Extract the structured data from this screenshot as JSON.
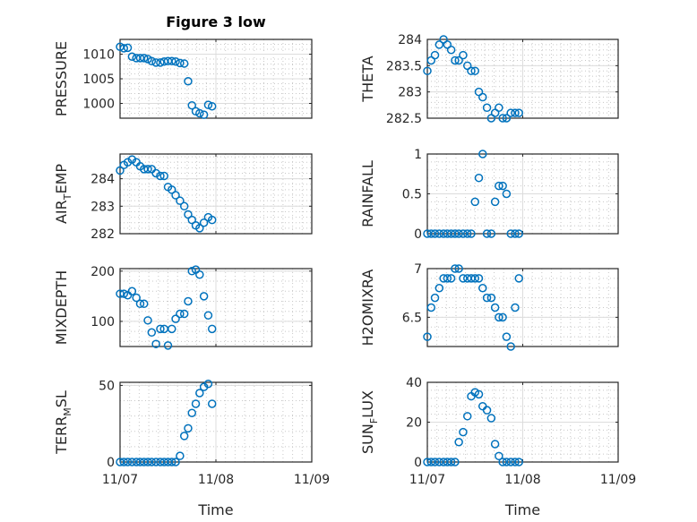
{
  "figure_title": "Figure 3 low",
  "chart_data": [
    {
      "type": "scatter",
      "ylabel": "PRESSURE",
      "ylim": [
        997,
        1013
      ],
      "yticks": [
        1000,
        1005,
        1010
      ],
      "xlim": [
        0,
        2
      ],
      "xticks": [
        0,
        1,
        2
      ],
      "xticklabels": [],
      "xlabel": "",
      "grid": true,
      "minor_grid": true,
      "marker_color": "#0072BD",
      "x": [
        0.0,
        0.04,
        0.08,
        0.125,
        0.17,
        0.21,
        0.25,
        0.29,
        0.33,
        0.375,
        0.42,
        0.46,
        0.5,
        0.54,
        0.58,
        0.625,
        0.67,
        0.71,
        0.75,
        0.79,
        0.83,
        0.875,
        0.92,
        0.96
      ],
      "y": [
        1011.5,
        1011.2,
        1011.3,
        1009.5,
        1009.2,
        1009.2,
        1009.2,
        1009.0,
        1008.6,
        1008.3,
        1008.3,
        1008.5,
        1008.6,
        1008.6,
        1008.5,
        1008.2,
        1008.1,
        1004.5,
        999.6,
        998.4,
        998.0,
        997.7,
        999.7,
        999.4
      ]
    },
    {
      "type": "scatter",
      "ylabel": "THETA",
      "ylim": [
        282.5,
        284
      ],
      "yticks": [
        282.5,
        283,
        283.5,
        284
      ],
      "xlim": [
        0,
        2
      ],
      "xticks": [
        0,
        1,
        2
      ],
      "xticklabels": [],
      "xlabel": "",
      "grid": true,
      "minor_grid": true,
      "marker_color": "#0072BD",
      "x": [
        0.0,
        0.04,
        0.08,
        0.125,
        0.17,
        0.21,
        0.25,
        0.29,
        0.33,
        0.375,
        0.42,
        0.46,
        0.5,
        0.54,
        0.58,
        0.625,
        0.67,
        0.71,
        0.75,
        0.79,
        0.83,
        0.875,
        0.92,
        0.96
      ],
      "y": [
        283.4,
        283.6,
        283.7,
        283.9,
        284.0,
        283.9,
        283.8,
        283.6,
        283.6,
        283.7,
        283.5,
        283.4,
        283.4,
        283.0,
        282.9,
        282.7,
        282.5,
        282.6,
        282.7,
        282.5,
        282.5,
        282.6,
        282.6,
        282.6
      ]
    },
    {
      "type": "scatter",
      "ylabel": "AIR_TEMP",
      "ylabel_main": "AIR",
      "ylabel_sub": "T",
      "ylabel_rest": "EMP",
      "ylim": [
        282,
        284.9
      ],
      "yticks": [
        282,
        283,
        284
      ],
      "xlim": [
        0,
        2
      ],
      "xticks": [
        0,
        1,
        2
      ],
      "xticklabels": [],
      "xlabel": "",
      "grid": true,
      "minor_grid": true,
      "marker_color": "#0072BD",
      "x": [
        0.0,
        0.04,
        0.08,
        0.125,
        0.17,
        0.21,
        0.25,
        0.29,
        0.33,
        0.375,
        0.42,
        0.46,
        0.5,
        0.54,
        0.58,
        0.625,
        0.67,
        0.71,
        0.75,
        0.79,
        0.83,
        0.875,
        0.92,
        0.96
      ],
      "y": [
        284.3,
        284.5,
        284.6,
        284.7,
        284.6,
        284.45,
        284.35,
        284.35,
        284.35,
        284.2,
        284.1,
        284.1,
        283.7,
        283.6,
        283.4,
        283.2,
        283.0,
        282.7,
        282.5,
        282.3,
        282.2,
        282.4,
        282.6,
        282.5
      ]
    },
    {
      "type": "scatter",
      "ylabel": "RAINFALL",
      "ylim": [
        0,
        1
      ],
      "yticks": [
        0,
        0.5,
        1
      ],
      "xlim": [
        0,
        2
      ],
      "xticks": [
        0,
        1,
        2
      ],
      "xticklabels": [],
      "xlabel": "",
      "grid": true,
      "minor_grid": true,
      "marker_color": "#0072BD",
      "x": [
        0.0,
        0.04,
        0.08,
        0.125,
        0.17,
        0.21,
        0.25,
        0.29,
        0.33,
        0.375,
        0.42,
        0.46,
        0.5,
        0.54,
        0.58,
        0.625,
        0.67,
        0.71,
        0.75,
        0.79,
        0.83,
        0.875,
        0.92,
        0.96
      ],
      "y": [
        0,
        0,
        0,
        0,
        0,
        0,
        0,
        0,
        0,
        0,
        0,
        0,
        0.4,
        0.7,
        1.0,
        0,
        0,
        0.4,
        0.6,
        0.6,
        0.5,
        0,
        0,
        0
      ]
    },
    {
      "type": "scatter",
      "ylabel": "MIXDEPTH",
      "ylim": [
        50,
        205
      ],
      "yticks": [
        100,
        200
      ],
      "xlim": [
        0,
        2
      ],
      "xticks": [
        0,
        1,
        2
      ],
      "xticklabels": [],
      "xlabel": "",
      "grid": true,
      "minor_grid": true,
      "marker_color": "#0072BD",
      "x": [
        0.0,
        0.04,
        0.08,
        0.125,
        0.17,
        0.21,
        0.25,
        0.29,
        0.33,
        0.375,
        0.42,
        0.46,
        0.5,
        0.54,
        0.58,
        0.625,
        0.67,
        0.71,
        0.75,
        0.79,
        0.83,
        0.875,
        0.92,
        0.96
      ],
      "y": [
        155,
        155,
        152,
        160,
        147,
        135,
        135,
        102,
        78,
        55,
        85,
        85,
        52,
        85,
        105,
        115,
        115,
        140,
        200,
        203,
        193,
        150,
        112,
        85
      ]
    },
    {
      "type": "scatter",
      "ylabel": "H2OMIXRA",
      "ylim": [
        6.2,
        7
      ],
      "yticks": [
        6.5,
        7
      ],
      "xlim": [
        0,
        2
      ],
      "xticks": [
        0,
        1,
        2
      ],
      "xticklabels": [],
      "xlabel": "",
      "grid": true,
      "minor_grid": true,
      "marker_color": "#0072BD",
      "x": [
        0.0,
        0.04,
        0.08,
        0.125,
        0.17,
        0.21,
        0.25,
        0.29,
        0.33,
        0.375,
        0.42,
        0.46,
        0.5,
        0.54,
        0.58,
        0.625,
        0.67,
        0.71,
        0.75,
        0.79,
        0.83,
        0.875,
        0.92,
        0.96
      ],
      "y": [
        6.3,
        6.6,
        6.7,
        6.8,
        6.9,
        6.9,
        6.9,
        7.0,
        7.0,
        6.9,
        6.9,
        6.9,
        6.9,
        6.9,
        6.8,
        6.7,
        6.7,
        6.6,
        6.5,
        6.5,
        6.3,
        6.2,
        6.6,
        6.9
      ]
    },
    {
      "type": "scatter",
      "ylabel": "TERR_MSL",
      "ylabel_main": "TERR",
      "ylabel_sub": "M",
      "ylabel_rest": "SL",
      "ylim": [
        0,
        52
      ],
      "yticks": [
        0,
        50
      ],
      "xlim": [
        0,
        2
      ],
      "xticks": [
        0,
        1,
        2
      ],
      "xticklabels": [
        "11/07",
        "11/08",
        "11/09"
      ],
      "xlabel": "Time",
      "grid": true,
      "minor_grid": true,
      "marker_color": "#0072BD",
      "x": [
        0.0,
        0.04,
        0.08,
        0.125,
        0.17,
        0.21,
        0.25,
        0.29,
        0.33,
        0.375,
        0.42,
        0.46,
        0.5,
        0.54,
        0.58,
        0.625,
        0.67,
        0.71,
        0.75,
        0.79,
        0.83,
        0.875,
        0.92,
        0.96
      ],
      "y": [
        0,
        0,
        0,
        0,
        0,
        0,
        0,
        0,
        0,
        0,
        0,
        0,
        0,
        0,
        0,
        4,
        17,
        22,
        32,
        38,
        45,
        49,
        51,
        38
      ]
    },
    {
      "type": "scatter",
      "ylabel": "SUN_FLUX",
      "ylabel_main": "SUN",
      "ylabel_sub": "F",
      "ylabel_rest": "LUX",
      "ylim": [
        0,
        40
      ],
      "yticks": [
        0,
        20,
        40
      ],
      "xlim": [
        0,
        2
      ],
      "xticks": [
        0,
        1,
        2
      ],
      "xticklabels": [
        "11/07",
        "11/08",
        "11/09"
      ],
      "xlabel": "Time",
      "grid": true,
      "minor_grid": true,
      "marker_color": "#0072BD",
      "x": [
        0.0,
        0.04,
        0.08,
        0.125,
        0.17,
        0.21,
        0.25,
        0.29,
        0.33,
        0.375,
        0.42,
        0.46,
        0.5,
        0.54,
        0.58,
        0.625,
        0.67,
        0.71,
        0.75,
        0.79,
        0.83,
        0.875,
        0.92,
        0.96
      ],
      "y": [
        0,
        0,
        0,
        0,
        0,
        0,
        0,
        0,
        10,
        15,
        23,
        33,
        35,
        34,
        28,
        26,
        22,
        9,
        3,
        0,
        0,
        0,
        0,
        0
      ]
    }
  ]
}
